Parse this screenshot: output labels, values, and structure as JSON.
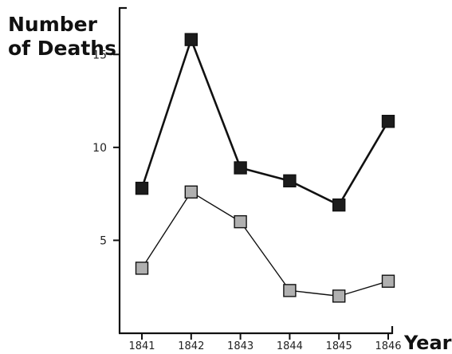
{
  "chart_data": {
    "type": "line",
    "title": "",
    "ylabel_lines": [
      "Number",
      "of Deaths"
    ],
    "xlabel": "Year",
    "categories": [
      "1841",
      "1842",
      "1843",
      "1844",
      "1845",
      "1846"
    ],
    "yticks": [
      5,
      10,
      15
    ],
    "ylim": [
      0,
      17.5
    ],
    "grid": false,
    "series": [
      {
        "values": [
          7.8,
          15.8,
          8.9,
          8.2,
          6.9,
          11.4
        ],
        "marker": "square",
        "marker_color": "#1c1c1c",
        "line_color": "#111111"
      },
      {
        "values": [
          3.5,
          7.6,
          6.0,
          2.3,
          2.0,
          2.8
        ],
        "marker": "square",
        "marker_color": "#b0b0b0",
        "line_color": "#111111"
      }
    ]
  }
}
